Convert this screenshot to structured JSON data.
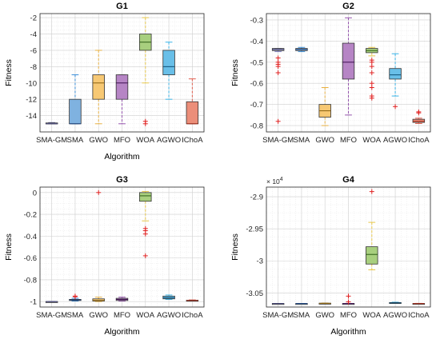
{
  "chart_data": [
    {
      "type": "box",
      "title": "G1",
      "xlabel": "Algorithm",
      "ylabel": "Fitness",
      "ylim": [
        -16,
        -1.5
      ],
      "yticks": [
        -14,
        -12,
        -10,
        -8,
        -6,
        -4,
        -2
      ],
      "categories": [
        "SMA-GM",
        "SMA",
        "GWO",
        "MFO",
        "WOA",
        "AGWO",
        "IChoA"
      ],
      "boxes": [
        {
          "name": "SMA-GM",
          "whisker_low": -15,
          "q1": -15,
          "median": -15,
          "q3": -14.9,
          "whisker_high": -14.85,
          "outliers": [],
          "color": "#b5b5d8"
        },
        {
          "name": "SMA",
          "whisker_low": -15,
          "q1": -15,
          "median": -15,
          "q3": -12,
          "whisker_high": -9,
          "outliers": [],
          "color": "#7fb2e0"
        },
        {
          "name": "GWO",
          "whisker_low": -15,
          "q1": -12,
          "median": -10,
          "q3": -9,
          "whisker_high": -6,
          "outliers": [],
          "color": "#f7c873"
        },
        {
          "name": "MFO",
          "whisker_low": -15,
          "q1": -12,
          "median": -10,
          "q3": -9,
          "whisker_high": -9,
          "outliers": [],
          "color": "#b685c5"
        },
        {
          "name": "WOA",
          "whisker_low": -10,
          "q1": -6,
          "median": -5,
          "q3": -4,
          "whisker_high": -2,
          "outliers": [
            -14.7,
            -15
          ],
          "color": "#a8cf7e"
        },
        {
          "name": "AGWO",
          "whisker_low": -12,
          "q1": -9,
          "median": -8,
          "q3": -6,
          "whisker_high": -5,
          "outliers": [],
          "color": "#69bfe8"
        },
        {
          "name": "IChoA",
          "whisker_low": -15,
          "q1": -15,
          "median": -15,
          "q3": -12.3,
          "whisker_high": -9.5,
          "outliers": [],
          "color": "#ec8e79"
        }
      ]
    },
    {
      "type": "box",
      "title": "G2",
      "xlabel": "",
      "ylabel": "Fitness",
      "ylim": [
        -0.83,
        -0.27
      ],
      "yticks": [
        -0.8,
        -0.7,
        -0.6,
        -0.5,
        -0.4,
        -0.3
      ],
      "categories": [
        "SMA-GM",
        "SMA",
        "GWO",
        "MFO",
        "WOA",
        "AGWO",
        "IChoA"
      ],
      "boxes": [
        {
          "name": "SMA-GM",
          "whisker_low": -0.45,
          "q1": -0.445,
          "median": -0.44,
          "q3": -0.435,
          "whisker_high": -0.435,
          "outliers": [
            -0.48,
            -0.5,
            -0.51,
            -0.52,
            -0.55,
            -0.78
          ],
          "color": "#b5b5d8"
        },
        {
          "name": "SMA",
          "whisker_low": -0.45,
          "q1": -0.445,
          "median": -0.44,
          "q3": -0.435,
          "whisker_high": -0.43,
          "outliers": [],
          "color": "#7fb2e0"
        },
        {
          "name": "GWO",
          "whisker_low": -0.8,
          "q1": -0.76,
          "median": -0.73,
          "q3": -0.7,
          "whisker_high": -0.62,
          "outliers": [],
          "color": "#f7c873"
        },
        {
          "name": "MFO",
          "whisker_low": -0.75,
          "q1": -0.58,
          "median": -0.5,
          "q3": -0.41,
          "whisker_high": -0.29,
          "outliers": [],
          "color": "#b685c5"
        },
        {
          "name": "WOA",
          "whisker_low": -0.47,
          "q1": -0.455,
          "median": -0.445,
          "q3": -0.435,
          "whisker_high": -0.43,
          "outliers": [
            -0.49,
            -0.5,
            -0.52,
            -0.55,
            -0.6,
            -0.62,
            -0.66,
            -0.67
          ],
          "color": "#a8cf7e"
        },
        {
          "name": "AGWO",
          "whisker_low": -0.66,
          "q1": -0.58,
          "median": -0.56,
          "q3": -0.53,
          "whisker_high": -0.46,
          "outliers": [
            -0.71
          ],
          "color": "#69bfe8"
        },
        {
          "name": "IChoA",
          "whisker_low": -0.79,
          "q1": -0.785,
          "median": -0.78,
          "q3": -0.77,
          "whisker_high": -0.765,
          "outliers": [
            -0.735,
            -0.74
          ],
          "color": "#ec8e79"
        }
      ]
    },
    {
      "type": "box",
      "title": "G3",
      "xlabel": "Algorithm",
      "ylabel": "Fitness",
      "ylim": [
        -1.05,
        0.05
      ],
      "yticks": [
        -1,
        -0.8,
        -0.6,
        -0.4,
        -0.2,
        0
      ],
      "categories": [
        "SMA-GM",
        "SMA",
        "GWO",
        "MFO",
        "WOA",
        "AGWO",
        "IChoA"
      ],
      "boxes": [
        {
          "name": "SMA-GM",
          "whisker_low": -1.0,
          "q1": -1.0,
          "median": -1.0,
          "q3": -1.0,
          "whisker_high": -1.0,
          "outliers": [],
          "color": "#b5b5d8"
        },
        {
          "name": "SMA",
          "whisker_low": -0.995,
          "q1": -0.99,
          "median": -0.985,
          "q3": -0.98,
          "whisker_high": -0.97,
          "outliers": [
            -0.955,
            -0.95
          ],
          "color": "#7fb2e0"
        },
        {
          "name": "GWO",
          "whisker_low": -1.0,
          "q1": -0.995,
          "median": -0.99,
          "q3": -0.975,
          "whisker_high": -0.96,
          "outliers": [
            0.0
          ],
          "color": "#f7c873"
        },
        {
          "name": "MFO",
          "whisker_low": -0.995,
          "q1": -0.99,
          "median": -0.98,
          "q3": -0.97,
          "whisker_high": -0.96,
          "outliers": [],
          "color": "#b685c5"
        },
        {
          "name": "WOA",
          "whisker_low": -0.26,
          "q1": -0.08,
          "median": -0.03,
          "q3": 0.0,
          "whisker_high": 0.01,
          "outliers": [
            -0.33,
            -0.35,
            -0.38,
            -0.58
          ],
          "color": "#a8cf7e"
        },
        {
          "name": "AGWO",
          "whisker_low": -0.98,
          "q1": -0.975,
          "median": -0.965,
          "q3": -0.95,
          "whisker_high": -0.94,
          "outliers": [],
          "color": "#69bfe8"
        },
        {
          "name": "IChoA",
          "whisker_low": -0.995,
          "q1": -0.993,
          "median": -0.99,
          "q3": -0.988,
          "whisker_high": -0.985,
          "outliers": [],
          "color": "#ec8e79"
        }
      ]
    },
    {
      "type": "box",
      "title": "G4",
      "xlabel": "Algorithm",
      "ylabel": "Fitness",
      "ylim": [
        -30720,
        -28850
      ],
      "yticks": [
        -30500,
        -30000,
        -29500,
        -29000
      ],
      "tick_labels": [
        "-3.05",
        "-3",
        "-2.95",
        "-2.9"
      ],
      "exponent_label": "× 10",
      "exponent_power": "4",
      "categories": [
        "SMA-GM",
        "SMA",
        "GWO",
        "MFO",
        "WOA",
        "AGWO",
        "IChoA"
      ],
      "boxes": [
        {
          "name": "SMA-GM",
          "whisker_low": -30665,
          "q1": -30665,
          "median": -30665,
          "q3": -30665,
          "whisker_high": -30665,
          "outliers": [],
          "color": "#b5b5d8"
        },
        {
          "name": "SMA",
          "whisker_low": -30665,
          "q1": -30665,
          "median": -30665,
          "q3": -30665,
          "whisker_high": -30665,
          "outliers": [],
          "color": "#7fb2e0"
        },
        {
          "name": "GWO",
          "whisker_low": -30665,
          "q1": -30665,
          "median": -30662,
          "q3": -30660,
          "whisker_high": -30658,
          "outliers": [],
          "color": "#f7c873"
        },
        {
          "name": "MFO",
          "whisker_low": -30665,
          "q1": -30665,
          "median": -30665,
          "q3": -30665,
          "whisker_high": -30665,
          "outliers": [
            -30550,
            -30640
          ],
          "color": "#b685c5"
        },
        {
          "name": "WOA",
          "whisker_low": -30140,
          "q1": -30050,
          "median": -29900,
          "q3": -29780,
          "whisker_high": -29400,
          "outliers": [
            -28920
          ],
          "color": "#a8cf7e"
        },
        {
          "name": "AGWO",
          "whisker_low": -30662,
          "q1": -30660,
          "median": -30655,
          "q3": -30650,
          "whisker_high": -30645,
          "outliers": [],
          "color": "#69bfe8"
        },
        {
          "name": "IChoA",
          "whisker_low": -30665,
          "q1": -30665,
          "median": -30665,
          "q3": -30664,
          "whisker_high": -30663,
          "outliers": [],
          "color": "#ec8e79"
        }
      ]
    }
  ]
}
